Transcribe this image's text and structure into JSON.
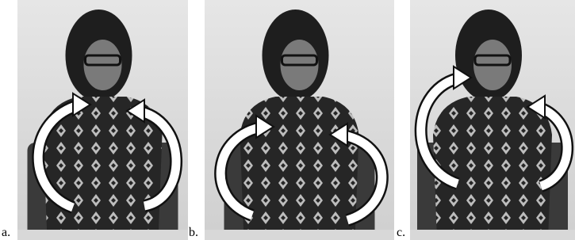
{
  "panels": [
    {
      "label": "a."
    },
    {
      "label": "b."
    },
    {
      "label": "c."
    }
  ]
}
